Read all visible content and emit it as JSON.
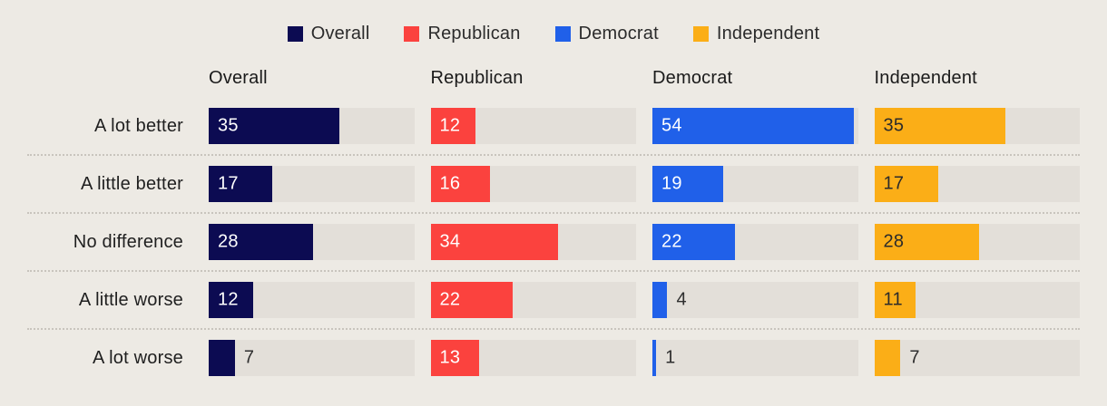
{
  "colors": {
    "background": "#EDEAE4",
    "track": "#E3DFD9",
    "series": [
      "#0C0B52",
      "#FB423E",
      "#2060E9",
      "#FBAE17"
    ],
    "value_on_bar": [
      "#FFFFFF",
      "#FFFFFF",
      "#FFFFFF",
      "#2B2B2B"
    ],
    "value_outside": "#2E2E2E",
    "divider": "#C8C4BD",
    "text": "#1F1F1F"
  },
  "legend": {
    "items": [
      {
        "label": "Overall"
      },
      {
        "label": "Republican"
      },
      {
        "label": "Democrat"
      },
      {
        "label": "Independent"
      }
    ]
  },
  "columns": [
    "Overall",
    "Republican",
    "Democrat",
    "Independent"
  ],
  "rows": [
    {
      "label": "A lot better",
      "values": [
        35,
        12,
        54,
        35
      ]
    },
    {
      "label": "A little better",
      "values": [
        17,
        16,
        19,
        17
      ]
    },
    {
      "label": "No difference",
      "values": [
        28,
        34,
        22,
        28
      ]
    },
    {
      "label": "A little worse",
      "values": [
        12,
        22,
        4,
        11
      ]
    },
    {
      "label": "A lot worse",
      "values": [
        7,
        13,
        1,
        7
      ]
    }
  ],
  "scale_max": 55,
  "chart_data": {
    "type": "bar",
    "orientation": "horizontal",
    "title": "",
    "categories": [
      "A lot better",
      "A little better",
      "No difference",
      "A little worse",
      "A lot worse"
    ],
    "series": [
      {
        "name": "Overall",
        "color": "#0C0B52",
        "values": [
          35,
          17,
          28,
          12,
          7
        ]
      },
      {
        "name": "Republican",
        "color": "#FB423E",
        "values": [
          12,
          16,
          34,
          22,
          13
        ]
      },
      {
        "name": "Democrat",
        "color": "#2060E9",
        "values": [
          54,
          19,
          22,
          4,
          1
        ]
      },
      {
        "name": "Independent",
        "color": "#FBAE17",
        "values": [
          35,
          17,
          28,
          11,
          7
        ]
      }
    ],
    "xlabel": "",
    "ylabel": "",
    "xlim": [
      0,
      55
    ],
    "grid": false,
    "legend_position": "top-center",
    "layout": "small-multiples: one bar column per series, value labels on bars"
  }
}
